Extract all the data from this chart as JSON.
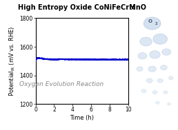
{
  "title_main": "High Entropy Oxide CoNiFeCrMnO",
  "title_sub": "x",
  "xlabel": "Time (h)",
  "ylabel_main": "Potential",
  "ylabel_sub": "IR",
  "ylabel_rest": " (mV vs. RHE)",
  "xlim": [
    0,
    10
  ],
  "ylim": [
    1200,
    1800
  ],
  "yticks": [
    1200,
    1400,
    1600,
    1800
  ],
  "xticks": [
    0,
    2,
    4,
    6,
    8,
    10
  ],
  "annotation": "Oxygen Evolution Reaction",
  "line_color": "#0000CC",
  "background_color": "#ffffff",
  "title_fontsize": 7.0,
  "axis_label_fontsize": 6.0,
  "tick_fontsize": 5.5,
  "annotation_fontsize": 6.5,
  "stable_potential": 1510,
  "initial_potential": 1495,
  "peak_potential": 1522,
  "peak_time": 1.0,
  "settle_time": 2.5,
  "bubble_color": "#c5d8ed",
  "bubble_edge_color": "#9ab5d0",
  "o2_label_color": "#555577"
}
